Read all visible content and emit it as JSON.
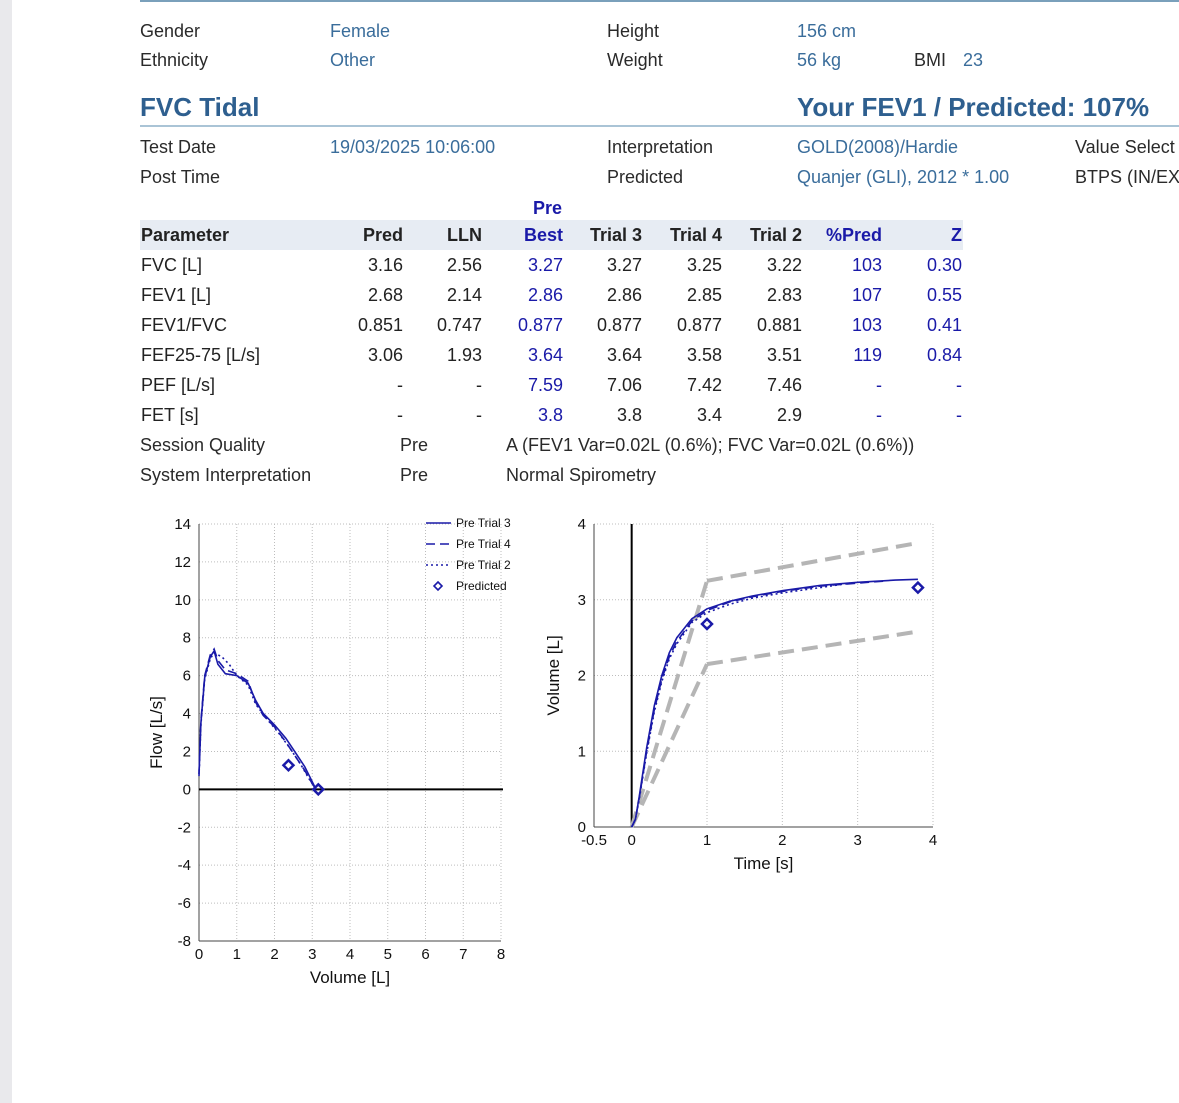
{
  "patient": {
    "gender_label": "Gender",
    "gender": "Female",
    "ethnicity_label": "Ethnicity",
    "ethnicity": "Other",
    "height_label": "Height",
    "height": "156 cm",
    "weight_label": "Weight",
    "weight": "56 kg",
    "bmi_label": "BMI",
    "bmi": "23"
  },
  "section": {
    "title": "FVC Tidal",
    "fev1_predicted": "Your FEV1 / Predicted: 107%"
  },
  "test": {
    "test_date_label": "Test Date",
    "test_date": "19/03/2025 10:06:00",
    "post_time_label": "Post Time",
    "interpretation_label": "Interpretation",
    "interpretation": "GOLD(2008)/Hardie",
    "predicted_label": "Predicted",
    "predicted": "Quanjer (GLI), 2012 * 1.00",
    "value_select_label": "Value Select",
    "btps_label": "BTPS (IN/EX"
  },
  "table": {
    "group_label": "Pre",
    "headers": [
      "Parameter",
      "Pred",
      "LLN",
      "Best",
      "Trial 3",
      "Trial 4",
      "Trial 2",
      "%Pred",
      "Z"
    ],
    "rows": [
      [
        "FVC [L]",
        "3.16",
        "2.56",
        "3.27",
        "3.27",
        "3.25",
        "3.22",
        "103",
        "0.30"
      ],
      [
        "FEV1 [L]",
        "2.68",
        "2.14",
        "2.86",
        "2.86",
        "2.85",
        "2.83",
        "107",
        "0.55"
      ],
      [
        "FEV1/FVC",
        "0.851",
        "0.747",
        "0.877",
        "0.877",
        "0.877",
        "0.881",
        "103",
        "0.41"
      ],
      [
        "FEF25-75 [L/s]",
        "3.06",
        "1.93",
        "3.64",
        "3.64",
        "3.58",
        "3.51",
        "119",
        "0.84"
      ],
      [
        "PEF [L/s]",
        "-",
        "-",
        "7.59",
        "7.06",
        "7.42",
        "7.46",
        "-",
        "-"
      ],
      [
        "FET [s]",
        "-",
        "-",
        "3.8",
        "3.8",
        "3.4",
        "2.9",
        "-",
        "-"
      ]
    ]
  },
  "summary": {
    "session_quality_label": "Session Quality",
    "session_quality_pre": "Pre",
    "session_quality": "A (FEV1 Var=0.02L (0.6%); FVC Var=0.02L (0.6%))",
    "system_interp_label": "System Interpretation",
    "system_interp_pre": "Pre",
    "system_interp": "Normal Spirometry"
  },
  "colors": {
    "accent": "#2e5f8f",
    "value_blue": "#1a1aa8",
    "link_blue": "#3a6d9b",
    "curve": "#1a1aa8",
    "grey_dash": "#b5b5b5"
  },
  "chart_data": [
    {
      "type": "line",
      "xlabel": "Volume [L]",
      "ylabel": "Flow [L/s]",
      "xlim": [
        0,
        8
      ],
      "ylim": [
        -8,
        14
      ],
      "xticks": [
        "0",
        "1",
        "2",
        "3",
        "4",
        "5",
        "6",
        "7",
        "8"
      ],
      "yticks": [
        "-8",
        "-6",
        "-4",
        "-2",
        "0",
        "2",
        "4",
        "6",
        "8",
        "10",
        "12",
        "14"
      ],
      "grid": true,
      "legend": "top-right",
      "series": [
        {
          "name": "Pre Trial 3",
          "style": "solid",
          "x": [
            0,
            0.05,
            0.15,
            0.3,
            0.4,
            0.5,
            0.7,
            1.0,
            1.3,
            1.5,
            1.7,
            2.0,
            2.3,
            2.5,
            2.8,
            3.0,
            3.1
          ],
          "y": [
            0.8,
            3.5,
            5.9,
            7.0,
            7.3,
            6.6,
            6.1,
            6.0,
            5.6,
            4.7,
            4.0,
            3.4,
            2.7,
            2.1,
            1.2,
            0.4,
            0.0
          ]
        },
        {
          "name": "Pre Trial 4",
          "style": "dashed",
          "x": [
            0,
            0.05,
            0.15,
            0.3,
            0.4,
            0.5,
            0.7,
            1.0,
            1.3,
            1.5,
            1.7,
            2.0,
            2.3,
            2.5,
            2.8,
            3.0,
            3.1
          ],
          "y": [
            0.8,
            3.6,
            6.0,
            7.1,
            7.4,
            6.8,
            6.3,
            6.1,
            5.7,
            4.6,
            3.9,
            3.3,
            2.5,
            1.9,
            1.0,
            0.3,
            0.0
          ]
        },
        {
          "name": "Pre Trial 2",
          "style": "dotted",
          "x": [
            0,
            0.05,
            0.15,
            0.3,
            0.4,
            0.6,
            0.8,
            1.0,
            1.3,
            1.5,
            1.8,
            2.1,
            2.4,
            2.7,
            2.9,
            3.1
          ],
          "y": [
            0.7,
            3.4,
            5.8,
            6.9,
            7.2,
            7.0,
            6.6,
            6.0,
            5.5,
            4.5,
            3.7,
            3.0,
            2.2,
            1.3,
            0.6,
            0.0
          ]
        },
        {
          "name": "Predicted",
          "style": "marker",
          "x": [
            2.37,
            3.16
          ],
          "y": [
            1.27,
            0.0
          ]
        }
      ]
    },
    {
      "type": "line",
      "xlabel": "Time  [s]",
      "ylabel": "Volume [L]",
      "xlim": [
        -0.5,
        4
      ],
      "ylim": [
        0,
        4
      ],
      "xticks": [
        "-0.5",
        "0",
        "1",
        "2",
        "3",
        "4"
      ],
      "yticks": [
        "0",
        "1",
        "2",
        "3",
        "4"
      ],
      "grid": true,
      "series": [
        {
          "name": "Pre Trial 3",
          "style": "solid",
          "x": [
            0,
            0.05,
            0.1,
            0.2,
            0.3,
            0.4,
            0.5,
            0.6,
            0.8,
            1.0,
            1.3,
            1.6,
            2.0,
            2.5,
            3.0,
            3.5,
            3.8
          ],
          "y": [
            0,
            0.1,
            0.4,
            1.05,
            1.6,
            2.0,
            2.3,
            2.5,
            2.75,
            2.88,
            2.98,
            3.05,
            3.12,
            3.19,
            3.23,
            3.26,
            3.27
          ]
        },
        {
          "name": "Pre Trial 4",
          "style": "dashed",
          "x": [
            0,
            0.05,
            0.1,
            0.2,
            0.3,
            0.4,
            0.5,
            0.6,
            0.8,
            1.0,
            1.3,
            1.6,
            2.0,
            2.5,
            3.0,
            3.4
          ],
          "y": [
            0,
            0.1,
            0.38,
            1.0,
            1.55,
            1.95,
            2.25,
            2.45,
            2.72,
            2.86,
            2.97,
            3.04,
            3.11,
            3.18,
            3.22,
            3.25
          ]
        },
        {
          "name": "Pre Trial 2",
          "style": "dotted",
          "x": [
            0,
            0.05,
            0.1,
            0.2,
            0.3,
            0.4,
            0.5,
            0.6,
            0.8,
            1.0,
            1.3,
            1.6,
            2.0,
            2.5,
            2.9
          ],
          "y": [
            0,
            0.1,
            0.36,
            0.98,
            1.52,
            1.92,
            2.22,
            2.42,
            2.7,
            2.83,
            2.94,
            3.02,
            3.09,
            3.16,
            3.22
          ]
        },
        {
          "name": "Predicted",
          "style": "marker",
          "x": [
            1.0,
            3.8
          ],
          "y": [
            2.68,
            3.16
          ]
        }
      ],
      "guides": [
        {
          "x": [
            0,
            1.0
          ],
          "y": [
            0,
            3.25
          ]
        },
        {
          "x": [
            0,
            1.0
          ],
          "y": [
            0,
            2.15
          ]
        },
        {
          "x": [
            1.0,
            3.8
          ],
          "y": [
            3.25,
            3.75
          ]
        },
        {
          "x": [
            1.0,
            3.8
          ],
          "y": [
            2.15,
            2.58
          ]
        }
      ]
    }
  ]
}
